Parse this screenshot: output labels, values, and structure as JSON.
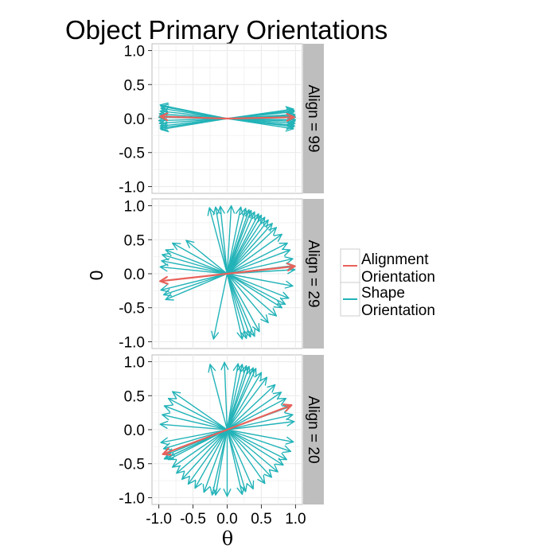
{
  "chart_data": {
    "type": "vector-field",
    "title": "Object Primary Orientations",
    "xlabel": "θ",
    "ylabel": "0",
    "xlim": [
      -1.1,
      1.1
    ],
    "ylim": [
      -1.1,
      1.1
    ],
    "x_ticks": [
      "-1.0",
      "-0.5",
      "0.0",
      "0.5",
      "1.0"
    ],
    "y_ticks": [
      "1.0",
      "0.5",
      "0.0",
      "-0.5",
      "-1.0"
    ],
    "grid": true,
    "legend": {
      "placement": "right",
      "entries": [
        {
          "label_line1": "Alignment",
          "label_line2": "Orientation",
          "color": "#e8625b"
        },
        {
          "label_line1": "Shape",
          "label_line2": "Orientation",
          "color": "#22b3b8"
        }
      ]
    },
    "colors": {
      "alignment": "#e8625b",
      "shape": "#22b3b8",
      "strip": "#bebebe",
      "panel_bg": "#ffffff",
      "grid": "#ebebeb"
    },
    "panels": [
      {
        "strip_label": "Align = 99",
        "alignment_vectors": [
          [
            0.98,
            0.02
          ],
          [
            -0.98,
            0.03
          ]
        ],
        "shape_vectors": [
          [
            1.0,
            0.02
          ],
          [
            1.0,
            -0.02
          ],
          [
            0.99,
            0.06
          ],
          [
            0.99,
            -0.07
          ],
          [
            0.98,
            0.1
          ],
          [
            0.98,
            -0.1
          ],
          [
            0.97,
            0.14
          ],
          [
            0.97,
            -0.15
          ],
          [
            0.99,
            0.04
          ],
          [
            0.99,
            -0.04
          ],
          [
            0.98,
            -0.12
          ],
          [
            0.98,
            0.12
          ],
          [
            -1.0,
            0.02
          ],
          [
            -1.0,
            -0.03
          ],
          [
            -0.99,
            0.07
          ],
          [
            -0.99,
            -0.07
          ],
          [
            -0.98,
            0.11
          ],
          [
            -0.98,
            -0.11
          ],
          [
            -0.97,
            0.15
          ],
          [
            -0.97,
            -0.16
          ],
          [
            -0.99,
            0.04
          ],
          [
            -0.98,
            0.2
          ],
          [
            -0.98,
            -0.14
          ],
          [
            -0.97,
            0.18
          ]
        ]
      },
      {
        "strip_label": "Align = 29",
        "alignment_vectors": [
          [
            0.99,
            0.11
          ],
          [
            -0.98,
            -0.11
          ]
        ],
        "shape_vectors": [
          [
            -0.26,
            0.97
          ],
          [
            -0.17,
            0.98
          ],
          [
            -0.1,
            0.99
          ],
          [
            0.06,
            1.0
          ],
          [
            0.2,
            0.98
          ],
          [
            0.27,
            0.96
          ],
          [
            0.32,
            0.94
          ],
          [
            0.35,
            0.93
          ],
          [
            0.4,
            0.91
          ],
          [
            0.46,
            0.88
          ],
          [
            0.5,
            0.86
          ],
          [
            0.55,
            0.83
          ],
          [
            0.6,
            0.79
          ],
          [
            0.66,
            0.74
          ],
          [
            0.72,
            0.68
          ],
          [
            0.8,
            0.58
          ],
          [
            0.88,
            0.45
          ],
          [
            0.92,
            0.35
          ],
          [
            0.96,
            0.22
          ],
          [
            0.98,
            0.12
          ],
          [
            0.99,
            0.06
          ],
          [
            0.96,
            -0.18
          ],
          [
            0.9,
            -0.36
          ],
          [
            0.85,
            -0.45
          ],
          [
            0.8,
            -0.5
          ],
          [
            0.72,
            -0.62
          ],
          [
            0.6,
            -0.72
          ],
          [
            0.47,
            -0.85
          ],
          [
            0.4,
            -0.92
          ],
          [
            0.34,
            -0.93
          ],
          [
            0.28,
            -0.95
          ],
          [
            0.22,
            -0.96
          ],
          [
            -0.2,
            -0.96
          ],
          [
            -0.6,
            0.49
          ],
          [
            -0.8,
            0.45
          ],
          [
            -0.9,
            0.35
          ],
          [
            -0.95,
            0.28
          ],
          [
            -0.96,
            0.19
          ],
          [
            -0.98,
            0.1
          ],
          [
            -0.97,
            -0.24
          ],
          [
            -0.93,
            -0.31
          ],
          [
            -0.9,
            -0.38
          ]
        ]
      },
      {
        "strip_label": "Align = 20",
        "alignment_vectors": [
          [
            0.94,
            0.36
          ],
          [
            -0.94,
            -0.36
          ]
        ],
        "shape_vectors": [
          [
            -0.25,
            0.96
          ],
          [
            -0.04,
            0.99
          ],
          [
            0.16,
            0.97
          ],
          [
            0.22,
            0.96
          ],
          [
            0.28,
            0.94
          ],
          [
            0.32,
            0.93
          ],
          [
            0.38,
            0.91
          ],
          [
            0.42,
            0.9
          ],
          [
            0.5,
            0.84
          ],
          [
            0.58,
            0.77
          ],
          [
            0.7,
            0.66
          ],
          [
            0.79,
            0.55
          ],
          [
            0.86,
            0.46
          ],
          [
            0.92,
            0.34
          ],
          [
            0.96,
            0.22
          ],
          [
            0.98,
            0.12
          ],
          [
            0.97,
            -0.18
          ],
          [
            0.93,
            -0.32
          ],
          [
            0.87,
            -0.44
          ],
          [
            0.82,
            -0.52
          ],
          [
            0.74,
            -0.62
          ],
          [
            0.65,
            -0.7
          ],
          [
            0.55,
            -0.79
          ],
          [
            0.38,
            -0.87
          ],
          [
            0.27,
            -0.91
          ],
          [
            0.22,
            -0.95
          ],
          [
            0.0,
            -0.98
          ],
          [
            -0.17,
            -0.96
          ],
          [
            -0.22,
            -0.96
          ],
          [
            -0.34,
            -0.92
          ],
          [
            -0.47,
            -0.86
          ],
          [
            -0.57,
            -0.8
          ],
          [
            -0.66,
            -0.73
          ],
          [
            -0.74,
            -0.64
          ],
          [
            -0.8,
            -0.55
          ],
          [
            -0.86,
            -0.44
          ],
          [
            -0.89,
            -0.37
          ],
          [
            -0.93,
            -0.28
          ],
          [
            -0.97,
            -0.19
          ],
          [
            -0.98,
            0.08
          ],
          [
            -0.95,
            0.22
          ],
          [
            -0.92,
            0.35
          ],
          [
            -0.86,
            0.46
          ],
          [
            -0.8,
            0.56
          ],
          [
            -0.92,
            -0.43
          ],
          [
            -0.9,
            -0.42
          ]
        ]
      }
    ]
  }
}
